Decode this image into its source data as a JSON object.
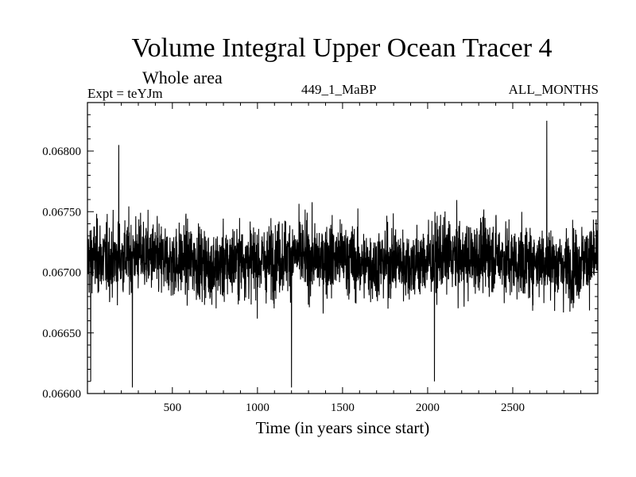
{
  "chart_data": {
    "type": "line",
    "title": "Volume Integral Upper Ocean Tracer 4",
    "subtitle": "Whole area",
    "experiment_label": "Expt = teYJm",
    "run_label": "449_1_MaBP",
    "months_label": "ALL_MONTHS",
    "xlabel": "Time (in years since start)",
    "ylabel": "",
    "xlim": [
      1,
      3000
    ],
    "ylim": [
      0.066,
      0.0684
    ],
    "xticks": [
      500,
      1000,
      1500,
      2000,
      2500
    ],
    "xtick_labels": [
      "500",
      "1000",
      "1500",
      "2000",
      "2500"
    ],
    "yticks": [
      0.066,
      0.0665,
      0.067,
      0.0675,
      0.068
    ],
    "ytick_labels": [
      "0.06600",
      "0.06650",
      "0.06700",
      "0.06750",
      "0.06800"
    ],
    "series": [
      {
        "name": "Tracer 4 volume integral",
        "color": "#000000",
        "sampling": "annual values, years 1–3000; dense noisy series oscillating about ~0.06710 with typical range 0.06660–0.06760",
        "mean": 0.0671,
        "notable_points": [
          {
            "x": 20,
            "y": 0.0661
          },
          {
            "x": 185,
            "y": 0.06805
          },
          {
            "x": 265,
            "y": 0.06605
          },
          {
            "x": 1200,
            "y": 0.06605
          },
          {
            "x": 2040,
            "y": 0.0661
          },
          {
            "x": 2700,
            "y": 0.06825
          }
        ]
      }
    ],
    "grid": false,
    "legend": "none"
  }
}
